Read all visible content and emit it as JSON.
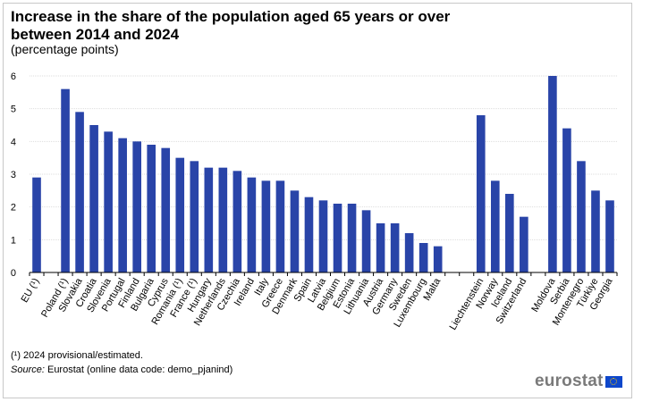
{
  "title": "Increase in the share of the population aged 65 years or over between 2014 and 2024",
  "subtitle": "(percentage points)",
  "footnote": "(¹) 2024 provisional/estimated.",
  "source_label": "Source:",
  "source_text": " Eurostat (online data code: demo_pjanind)",
  "logo_text": "eurostat",
  "colors": {
    "bar": "#2944a8",
    "grid": "#dddddd",
    "axis": "#000000"
  },
  "chart_data": {
    "type": "bar",
    "title": "Increase in the share of the population aged 65 years or over between 2014 and 2024",
    "subtitle": "(percentage points)",
    "xlabel": "",
    "ylabel": "",
    "ylim": [
      0,
      6
    ],
    "yticks": [
      0,
      1,
      2,
      3,
      4,
      5,
      6
    ],
    "grid": true,
    "legend": "none",
    "categories": [
      "EU (¹)",
      "",
      "Poland (¹)",
      "Slovakia",
      "Croatia",
      "Slovenia",
      "Portugal",
      "Finland",
      "Bulgaria",
      "Cyprus",
      "Romania (¹)",
      "France (¹)",
      "Hungary",
      "Netherlands",
      "Czechia",
      "Ireland",
      "Italy",
      "Greece",
      "Denmark",
      "Spain",
      "Latvia",
      "Belgium",
      "Estonia",
      "Lithuania",
      "Austria",
      "Germany",
      "Sweden",
      "Luxembourg",
      "Malta",
      "",
      "",
      "Liechtenstein",
      "Norway",
      "Iceland",
      "Switzerland",
      "",
      "Moldova",
      "Serbia",
      "Montenegro",
      "Türkiye",
      "Georgia"
    ],
    "values": [
      2.9,
      null,
      5.6,
      4.9,
      4.5,
      4.3,
      4.1,
      4.0,
      3.9,
      3.8,
      3.5,
      3.4,
      3.2,
      3.2,
      3.1,
      2.9,
      2.8,
      2.8,
      2.5,
      2.3,
      2.2,
      2.1,
      2.1,
      1.9,
      1.5,
      1.5,
      1.2,
      0.9,
      0.8,
      null,
      null,
      4.8,
      2.8,
      2.4,
      1.7,
      null,
      6.0,
      4.4,
      3.4,
      2.5,
      2.2
    ]
  }
}
